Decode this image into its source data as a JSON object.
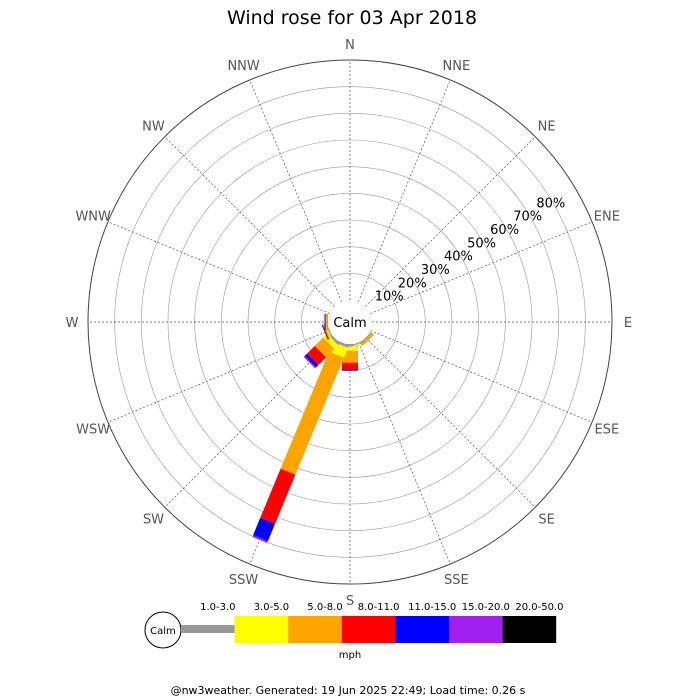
{
  "chart_data": {
    "type": "windrose",
    "title": "Wind rose for 03 Apr 2018",
    "directions": [
      "N",
      "NNE",
      "NE",
      "ENE",
      "E",
      "ESE",
      "SE",
      "SSE",
      "S",
      "SSW",
      "SW",
      "WSW",
      "W",
      "WNW",
      "NW",
      "NNW"
    ],
    "rings": [
      "10%",
      "20%",
      "30%",
      "40%",
      "50%",
      "60%",
      "70%",
      "80%"
    ],
    "ring_max_percent": 90,
    "center_label": "Calm",
    "speed_bins": [
      {
        "label": "1.0-3.0",
        "color": "#999999"
      },
      {
        "label": "3.0-5.0",
        "color": "#ffff00"
      },
      {
        "label": "5.0-8.0",
        "color": "#ffa500"
      },
      {
        "label": "8.0-11.0",
        "color": "#ff0000"
      },
      {
        "label": "11.0-15.0",
        "color": "#0000ff"
      },
      {
        "label": "15.0-20.0",
        "color": "#a020f0"
      },
      {
        "label": "20.0-50.0",
        "color": "#000000"
      }
    ],
    "series": [
      {
        "direction": "S",
        "values": [
          1.0,
          1.5,
          4.5,
          2.5,
          0.5,
          0.0,
          0.0
        ]
      },
      {
        "direction": "SSW",
        "values": [
          1.0,
          4.0,
          47.5,
          20.0,
          7.0,
          0.7,
          0.0
        ]
      },
      {
        "direction": "SW",
        "values": [
          1.0,
          2.0,
          4.5,
          4.0,
          1.3,
          0.5,
          0.0
        ]
      },
      {
        "direction": "WSW",
        "values": [
          0.5,
          0.5,
          0.5,
          0.3,
          0.2,
          0.0,
          0.0
        ]
      },
      {
        "direction": "W",
        "values": [
          0.3,
          0.0,
          0.5,
          0.3,
          0.2,
          0.0,
          0.0
        ]
      },
      {
        "direction": "SSE",
        "values": [
          0.5,
          0.5,
          0.0,
          0.0,
          0.0,
          0.0,
          0.0
        ]
      },
      {
        "direction": "SE",
        "values": [
          0.5,
          0.0,
          1.0,
          0.0,
          0.0,
          0.0,
          0.0
        ]
      }
    ],
    "legend_unit": "mph"
  },
  "footer": "@nw3weather. Generated: 19 Jun 2025 22:49; Load time: 0.26 s"
}
